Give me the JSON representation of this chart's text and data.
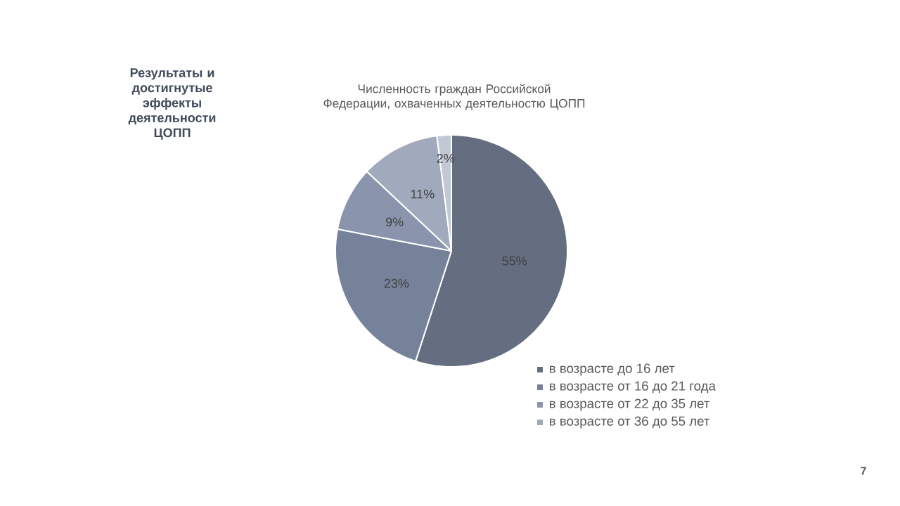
{
  "chart_data": {
    "type": "pie",
    "title": "Численность граждан Российской Федерации, охваченных деятельностю ЦОПП",
    "categories": [
      "в возрасте до 16 лет",
      "в возрасте от 16 до 21 года",
      "в возрасте от 22 до 35 лет",
      "в возрасте от 36 до 55 лет",
      null
    ],
    "values": [
      55,
      23,
      9,
      11,
      2
    ],
    "colors": [
      "#646e80",
      "#76819a",
      "#8a95ad",
      "#a0aabc",
      "#c2c8d4"
    ],
    "value_labels": [
      "55%",
      "23%",
      "9%",
      "11%",
      "2%"
    ],
    "legend": "bottom right",
    "annotations": [
      "Результаты и достигнутые эффекты деятельности ЦОПП",
      "7"
    ]
  }
}
